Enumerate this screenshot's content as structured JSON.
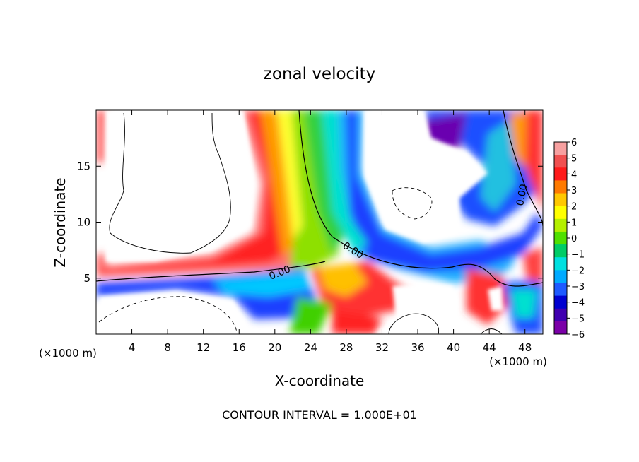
{
  "chart_data": {
    "type": "heatmap",
    "title": "zonal velocity",
    "xlabel": "X-coordinate",
    "ylabel": "Z-coordinate",
    "x_unit_note": "(×1000 m)",
    "xlim": [
      0,
      50
    ],
    "ylim": [
      0,
      20
    ],
    "x_ticks": [
      4,
      8,
      12,
      16,
      20,
      24,
      28,
      32,
      36,
      40,
      44,
      48
    ],
    "y_ticks": [
      5,
      10,
      15
    ],
    "colorbar": {
      "levels": [
        6,
        5,
        4,
        3,
        2,
        1,
        0,
        -1,
        -2,
        -3,
        -4,
        -5,
        -6
      ],
      "colors": [
        "#f7a0a0",
        "#f05050",
        "#ff1a1a",
        "#ff7a00",
        "#ffc800",
        "#ffff00",
        "#b4f000",
        "#50e000",
        "#00cc66",
        "#00e0e0",
        "#00aaff",
        "#1e5aff",
        "#0000d0",
        "#4000b0",
        "#7b00a8"
      ]
    },
    "contour_labels": [
      "0.00",
      "0.00",
      "0.00"
    ],
    "footer": "CONTOUR INTERVAL = 1.000E+01"
  }
}
